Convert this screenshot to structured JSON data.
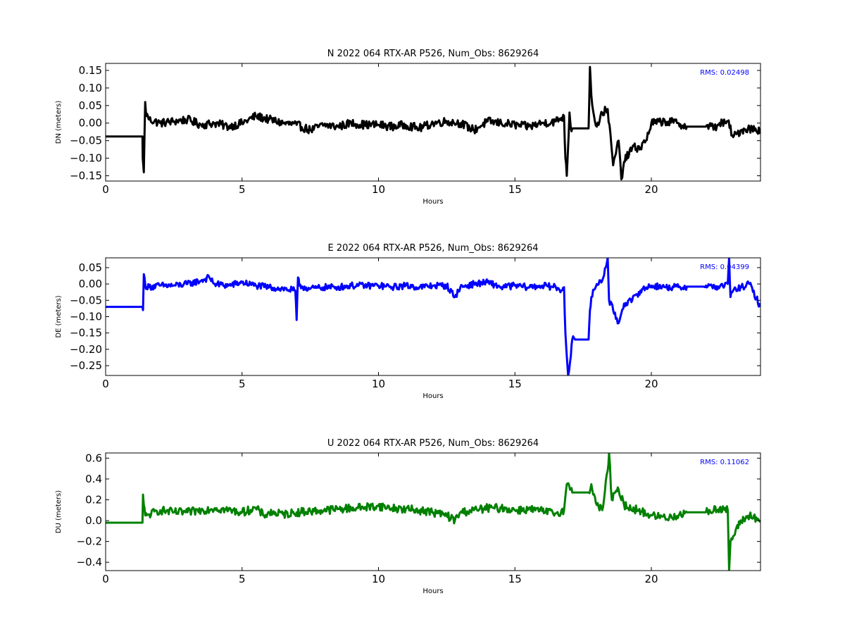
{
  "chart_data": [
    {
      "type": "line",
      "title": "N 2022 064 RTX-AR  P526, Num_Obs: 8629264",
      "xlabel": "Hours",
      "ylabel": "DN (meters)",
      "xlim": [
        0,
        24
      ],
      "ylim": [
        -0.165,
        0.17
      ],
      "xticks": [
        0,
        5,
        10,
        15,
        20
      ],
      "xtick_labels": [
        "0",
        "5",
        "10",
        "15",
        "20"
      ],
      "yticks": [
        -0.15,
        -0.1,
        -0.05,
        0.0,
        0.05,
        0.1,
        0.15
      ],
      "ytick_labels": [
        "−0.15",
        "−0.10",
        "−0.05",
        "0.00",
        "0.05",
        "0.10",
        "0.15"
      ],
      "annotation": "RMS:  0.02498",
      "annotation_color": "#0000ff",
      "line_color": "#000000",
      "noise_amplitude": 0.012,
      "grid": false,
      "series": [
        {
          "x": [
            0,
            1.35,
            1.36,
            1.4,
            1.45,
            1.5,
            1.55,
            1.6,
            2.0,
            2.5,
            3.0,
            3.5,
            4.0,
            4.5,
            5.0,
            5.5,
            6.0,
            6.5,
            7.0,
            7.5,
            8.0,
            8.5,
            9.0,
            9.5,
            10.0,
            10.5,
            11.0,
            11.5,
            12.0,
            12.5,
            13.0,
            13.5,
            14.0,
            14.5,
            15.0,
            15.5,
            16.0,
            16.5,
            16.8,
            16.85,
            16.9,
            17.0,
            17.05,
            17.1,
            17.7,
            17.75,
            17.8,
            17.9,
            18.0,
            18.2,
            18.4,
            18.6,
            18.8,
            18.9,
            19.0,
            19.3,
            19.6,
            19.8,
            20.0,
            20.5,
            21.0,
            21.25,
            21.3,
            22.0,
            22.4,
            22.5,
            22.7,
            22.8,
            23.0,
            23.3,
            23.6,
            24.0
          ],
          "y": [
            -0.038,
            -0.038,
            -0.1,
            -0.14,
            0.06,
            0.02,
            0.02,
            0.01,
            0.0,
            0.005,
            0.01,
            -0.005,
            0.0,
            -0.01,
            0.0,
            0.02,
            0.01,
            0.0,
            -0.005,
            -0.02,
            -0.005,
            -0.01,
            0.0,
            -0.005,
            -0.005,
            -0.01,
            -0.005,
            -0.015,
            0.0,
            0.005,
            0.0,
            -0.02,
            0.005,
            0.0,
            -0.005,
            -0.01,
            0.0,
            0.005,
            0.02,
            -0.1,
            -0.15,
            0.03,
            -0.015,
            -0.015,
            -0.015,
            0.16,
            0.08,
            0.02,
            -0.01,
            0.03,
            0.04,
            -0.12,
            -0.05,
            -0.16,
            -0.11,
            -0.07,
            -0.07,
            -0.05,
            0.0,
            0.005,
            0.0,
            -0.01,
            -0.01,
            -0.01,
            -0.01,
            0.0,
            0.0,
            0.005,
            -0.04,
            -0.02,
            -0.015,
            -0.02
          ]
        }
      ]
    },
    {
      "type": "line",
      "title": "E 2022 064 RTX-AR  P526, Num_Obs: 8629264",
      "xlabel": "Hours",
      "ylabel": "DE (meters)",
      "xlim": [
        0,
        24
      ],
      "ylim": [
        -0.28,
        0.08
      ],
      "xticks": [
        0,
        5,
        10,
        15,
        20
      ],
      "xtick_labels": [
        "0",
        "5",
        "10",
        "15",
        "20"
      ],
      "yticks": [
        -0.25,
        -0.2,
        -0.15,
        -0.1,
        -0.05,
        0.0,
        0.05
      ],
      "ytick_labels": [
        "−0.25",
        "−0.20",
        "−0.15",
        "−0.10",
        "−0.05",
        "0.00",
        "0.05"
      ],
      "annotation": "RMS:  0.04399",
      "annotation_color": "#0000ff",
      "line_color": "#0000ff",
      "noise_amplitude": 0.01,
      "grid": false,
      "series": [
        {
          "x": [
            0,
            1.35,
            1.37,
            1.4,
            1.45,
            1.5,
            2.0,
            2.5,
            3.0,
            3.5,
            3.8,
            4.0,
            4.5,
            5.0,
            5.5,
            6.0,
            6.5,
            6.95,
            7.0,
            7.05,
            7.1,
            7.5,
            8.0,
            8.5,
            9.0,
            9.5,
            10.0,
            10.5,
            11.0,
            11.5,
            12.0,
            12.5,
            12.8,
            13.0,
            13.5,
            14.0,
            14.5,
            15.0,
            15.5,
            16.0,
            16.5,
            16.7,
            16.8,
            16.85,
            16.95,
            17.05,
            17.1,
            17.2,
            17.7,
            17.75,
            17.8,
            18.0,
            18.2,
            18.4,
            18.45,
            18.6,
            18.8,
            19.0,
            19.3,
            19.6,
            20.0,
            20.5,
            21.0,
            21.25,
            21.3,
            21.9,
            22.0,
            22.5,
            22.8,
            22.85,
            22.9,
            23.0,
            23.3,
            23.6,
            24.0
          ],
          "y": [
            -0.07,
            -0.07,
            -0.08,
            0.03,
            0.0,
            -0.01,
            -0.005,
            -0.005,
            0.0,
            0.01,
            0.02,
            0.0,
            -0.005,
            0.005,
            -0.005,
            -0.01,
            -0.015,
            -0.02,
            -0.11,
            0.02,
            -0.005,
            -0.015,
            -0.01,
            -0.01,
            -0.005,
            -0.005,
            -0.005,
            -0.01,
            -0.005,
            -0.01,
            -0.005,
            -0.005,
            -0.04,
            -0.01,
            0.0,
            0.005,
            -0.01,
            -0.005,
            -0.01,
            -0.005,
            -0.01,
            -0.02,
            -0.01,
            -0.15,
            -0.28,
            -0.22,
            -0.17,
            -0.17,
            -0.17,
            -0.08,
            -0.04,
            0.0,
            0.01,
            0.08,
            -0.05,
            -0.08,
            -0.12,
            -0.06,
            -0.05,
            -0.02,
            -0.005,
            -0.01,
            -0.01,
            -0.01,
            -0.008,
            -0.008,
            -0.005,
            -0.01,
            0.0,
            0.08,
            -0.04,
            -0.02,
            -0.01,
            0.0,
            -0.07
          ]
        }
      ]
    },
    {
      "type": "line",
      "title": "U 2022 064 RTX-AR  P526, Num_Obs: 8629264",
      "xlabel": "Hours",
      "ylabel": "DU (meters)",
      "xlim": [
        0,
        24
      ],
      "ylim": [
        -0.48,
        0.65
      ],
      "xticks": [
        0,
        5,
        10,
        15,
        20
      ],
      "xtick_labels": [
        "0",
        "5",
        "10",
        "15",
        "20"
      ],
      "yticks": [
        -0.4,
        -0.2,
        0.0,
        0.2,
        0.4,
        0.6
      ],
      "ytick_labels": [
        "−0.4",
        "−0.2",
        "0.0",
        "0.2",
        "0.4",
        "0.6"
      ],
      "annotation": "RMS:  0.11062",
      "annotation_color": "#0000ff",
      "line_color": "#008000",
      "noise_amplitude": 0.04,
      "grid": false,
      "series": [
        {
          "x": [
            0,
            1.35,
            1.37,
            1.4,
            1.45,
            1.5,
            1.6,
            2.0,
            2.5,
            3.0,
            3.5,
            4.0,
            4.5,
            5.0,
            5.5,
            5.8,
            6.0,
            6.5,
            7.0,
            7.5,
            8.0,
            8.5,
            9.0,
            9.5,
            10.0,
            10.5,
            11.0,
            11.5,
            12.0,
            12.5,
            12.8,
            13.0,
            13.5,
            14.0,
            14.5,
            15.0,
            15.5,
            16.0,
            16.5,
            16.8,
            16.9,
            17.05,
            17.1,
            17.7,
            17.8,
            18.0,
            18.2,
            18.4,
            18.45,
            18.55,
            18.8,
            19.0,
            19.5,
            20.0,
            20.5,
            21.0,
            21.25,
            21.3,
            22.0,
            22.5,
            22.8,
            22.85,
            22.9,
            23.0,
            23.3,
            23.6,
            24.0
          ],
          "y": [
            -0.02,
            -0.02,
            0.25,
            0.15,
            0.05,
            0.05,
            0.06,
            0.1,
            0.08,
            0.08,
            0.1,
            0.12,
            0.1,
            0.08,
            0.12,
            0.05,
            0.08,
            0.06,
            0.08,
            0.09,
            0.1,
            0.11,
            0.12,
            0.13,
            0.14,
            0.12,
            0.11,
            0.1,
            0.08,
            0.05,
            0.0,
            0.08,
            0.1,
            0.12,
            0.12,
            0.1,
            0.11,
            0.09,
            0.07,
            0.1,
            0.35,
            0.3,
            0.27,
            0.27,
            0.35,
            0.15,
            0.1,
            0.48,
            0.65,
            0.2,
            0.3,
            0.15,
            0.1,
            0.05,
            0.03,
            0.05,
            0.08,
            0.08,
            0.08,
            0.12,
            0.1,
            -0.48,
            -0.2,
            -0.15,
            0.0,
            0.05,
            0.0
          ]
        }
      ]
    }
  ]
}
